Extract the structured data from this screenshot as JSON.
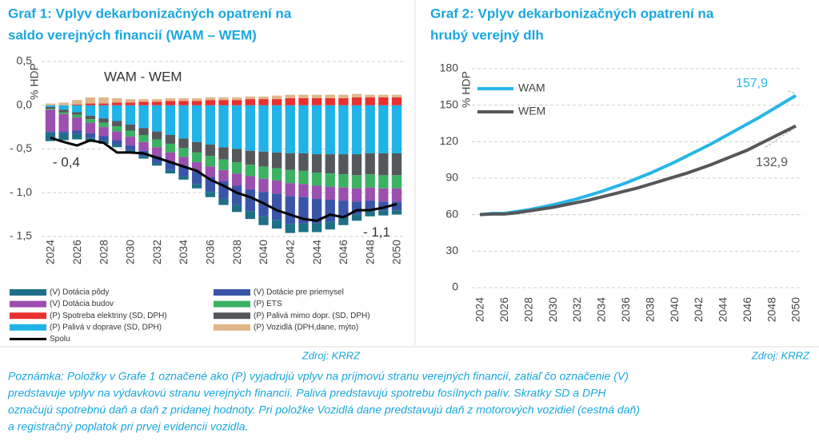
{
  "chart_data": [
    {
      "type": "bar",
      "stacked": true,
      "title": [
        "Graf 1: Vplyv dekarbonizačných opatrení na",
        "saldo verejných financií (WAM – WEM)"
      ],
      "annotation": "WAM - WEM",
      "ylabel": "% HDP",
      "source": "Zdroj: KRRZ",
      "categories": [
        "2024",
        null,
        "2026",
        null,
        "2028",
        null,
        "2030",
        null,
        "2032",
        null,
        "2034",
        null,
        "2036",
        null,
        "2038",
        null,
        "2040",
        null,
        "2042",
        null,
        "2044",
        null,
        "2046",
        null,
        "2048",
        null,
        "2050"
      ],
      "ylim": [
        -1.5,
        0.5
      ],
      "yticks": [
        {
          "value": 0.5,
          "label": "0,5"
        },
        {
          "value": 0,
          "label": "0,0"
        },
        {
          "value": -0.5,
          "label": "- 0,5"
        },
        {
          "value": -1,
          "label": "- 1,0"
        },
        {
          "value": -1.5,
          "label": "- 1,5"
        }
      ],
      "grid": true,
      "series": [
        {
          "name": "(P) Palivá v doprave (SD, DPH)",
          "color": "#1fb3e8",
          "values": [
            -0.02,
            -0.05,
            -0.08,
            -0.12,
            -0.15,
            -0.18,
            -0.22,
            -0.26,
            -0.3,
            -0.34,
            -0.38,
            -0.42,
            -0.45,
            -0.48,
            -0.5,
            -0.52,
            -0.53,
            -0.54,
            -0.55,
            -0.55,
            -0.56,
            -0.56,
            -0.56,
            -0.56,
            -0.55,
            -0.55,
            -0.55
          ]
        },
        {
          "name": "(P) Palivá mimo dopr. (SD, DPH)",
          "color": "#55585b",
          "values": [
            -0.02,
            -0.03,
            -0.03,
            -0.04,
            -0.05,
            -0.06,
            -0.07,
            -0.08,
            -0.09,
            -0.1,
            -0.11,
            -0.12,
            -0.13,
            -0.14,
            -0.15,
            -0.16,
            -0.17,
            -0.18,
            -0.19,
            -0.2,
            -0.21,
            -0.22,
            -0.23,
            -0.24,
            -0.24,
            -0.25,
            -0.25
          ]
        },
        {
          "name": "(P) ETS",
          "color": "#3bb162",
          "values": [
            -0.01,
            -0.02,
            -0.03,
            -0.04,
            -0.05,
            -0.06,
            -0.07,
            -0.08,
            -0.09,
            -0.1,
            -0.1,
            -0.11,
            -0.12,
            -0.12,
            -0.13,
            -0.13,
            -0.14,
            -0.14,
            -0.15,
            -0.15,
            -0.15,
            -0.15,
            -0.15,
            -0.15,
            -0.15,
            -0.15,
            -0.15
          ]
        },
        {
          "name": "(V) Dotácia budov",
          "color": "#9b4fae",
          "values": [
            -0.25,
            -0.2,
            -0.15,
            -0.12,
            -0.1,
            -0.1,
            -0.1,
            -0.1,
            -0.1,
            -0.1,
            -0.1,
            -0.11,
            -0.12,
            -0.13,
            -0.14,
            -0.15,
            -0.15,
            -0.15,
            -0.15,
            -0.15,
            -0.15,
            -0.15,
            -0.15,
            -0.15,
            -0.15,
            -0.15,
            -0.15
          ]
        },
        {
          "name": "(V) Dotácie pre priemysel",
          "color": "#3a55a8",
          "values": [
            -0.01,
            -0.02,
            -0.04,
            -0.05,
            -0.05,
            -0.05,
            -0.05,
            -0.06,
            -0.08,
            -0.1,
            -0.12,
            -0.14,
            -0.17,
            -0.2,
            -0.22,
            -0.25,
            -0.28,
            -0.3,
            -0.32,
            -0.3,
            -0.28,
            -0.25,
            -0.2,
            -0.15,
            -0.12,
            -0.1,
            -0.1
          ]
        },
        {
          "name": "(V) Dotácia pôdy",
          "color": "#1f6f87",
          "values": [
            -0.1,
            -0.08,
            -0.06,
            -0.05,
            -0.04,
            -0.03,
            -0.03,
            -0.03,
            -0.03,
            -0.04,
            -0.04,
            -0.05,
            -0.06,
            -0.07,
            -0.08,
            -0.09,
            -0.1,
            -0.1,
            -0.1,
            -0.1,
            -0.1,
            -0.09,
            -0.08,
            -0.07,
            -0.06,
            -0.06,
            -0.05
          ]
        },
        {
          "name": "(P) Spotreba elektriny (SD, DPH)",
          "color": "#e8302f",
          "values": [
            0,
            0,
            0.01,
            0.02,
            0.02,
            0.03,
            0.03,
            0.04,
            0.04,
            0.05,
            0.05,
            0.05,
            0.06,
            0.06,
            0.06,
            0.07,
            0.07,
            0.07,
            0.08,
            0.08,
            0.08,
            0.08,
            0.08,
            0.09,
            0.09,
            0.09,
            0.09
          ]
        },
        {
          "name": "(P) Vozidlá (DPH,dane, mýto)",
          "color": "#e0b58a",
          "values": [
            0.02,
            0.03,
            0.05,
            0.07,
            0.07,
            0.05,
            0.04,
            0.03,
            0.03,
            0.03,
            0.03,
            0.03,
            0.03,
            0.03,
            0.03,
            0.03,
            0.03,
            0.04,
            0.04,
            0.04,
            0.04,
            0.04,
            0.04,
            0.04,
            0.03,
            0.03,
            0.03
          ]
        },
        {
          "name": "Spolu",
          "type": "line",
          "color": "#000000",
          "values": [
            -0.37,
            -0.42,
            -0.46,
            -0.4,
            -0.43,
            -0.54,
            -0.54,
            -0.55,
            -0.6,
            -0.65,
            -0.7,
            -0.75,
            -0.85,
            -0.92,
            -1.0,
            -1.05,
            -1.12,
            -1.2,
            -1.25,
            -1.3,
            -1.32,
            -1.25,
            -1.28,
            -1.2,
            -1.2,
            -1.17,
            -1.13
          ],
          "value_labels": [
            "- 0,4",
            null,
            null,
            null,
            null,
            null,
            null,
            null,
            null,
            null,
            null,
            null,
            null,
            null,
            null,
            null,
            null,
            null,
            null,
            null,
            null,
            null,
            null,
            null,
            null,
            null,
            "- 1,1"
          ]
        }
      ]
    },
    {
      "type": "line",
      "title": [
        "Graf 2: Vplyv dekarbonizačných opatrení na",
        "hrubý verejný dlh"
      ],
      "ylabel": "% HDP",
      "source": "Zdroj: KRRZ",
      "x": [
        2024,
        2025,
        2026,
        2027,
        2028,
        2029,
        2030,
        2031,
        2032,
        2033,
        2034,
        2035,
        2036,
        2037,
        2038,
        2039,
        2040,
        2041,
        2042,
        2043,
        2044,
        2045,
        2046,
        2047,
        2048,
        2049,
        2050
      ],
      "xlim": [
        2024,
        2050
      ],
      "xticks": [
        2024,
        2026,
        2028,
        2030,
        2032,
        2034,
        2036,
        2038,
        2040,
        2042,
        2044,
        2046,
        2048,
        2050
      ],
      "ylim": [
        0,
        180
      ],
      "yticks": [
        0,
        30,
        60,
        90,
        120,
        150,
        180
      ],
      "grid": true,
      "series": [
        {
          "name": "WAM",
          "color": "#29b5e8",
          "values": [
            60,
            61,
            61,
            62.5,
            64,
            66,
            68,
            70.5,
            73,
            76,
            79,
            82.5,
            86,
            90,
            94,
            98.5,
            103,
            108,
            113,
            118,
            123.5,
            129,
            134.5,
            140,
            146,
            152,
            157.9
          ],
          "value_labels": [
            null,
            null,
            null,
            null,
            null,
            null,
            null,
            null,
            null,
            null,
            null,
            null,
            null,
            null,
            null,
            null,
            null,
            null,
            null,
            null,
            null,
            null,
            null,
            null,
            null,
            null,
            "157,9"
          ]
        },
        {
          "name": "WEM",
          "color": "#555759",
          "values": [
            60,
            60.5,
            60.5,
            61.5,
            63,
            64.5,
            66,
            68,
            70,
            72,
            74.5,
            77,
            79.5,
            82,
            85,
            88,
            91,
            94,
            97.5,
            101,
            105,
            109,
            113,
            118,
            123,
            128,
            132.9
          ],
          "value_labels": [
            null,
            null,
            null,
            null,
            null,
            null,
            null,
            null,
            null,
            null,
            null,
            null,
            null,
            null,
            null,
            null,
            null,
            null,
            null,
            null,
            null,
            null,
            null,
            null,
            null,
            null,
            "132,9"
          ]
        }
      ]
    }
  ],
  "note": [
    "Poznámka: Položky v Grafe 1 označené ako (P) vyjadrujú vplyv na príjmovú stranu verejných financií, zatiaľ čo označenie (V)",
    "predstavuje vplyv na výdavkovú stranu verejných financií. Palivá predstavujú spotrebu fosílnych palív. Skratky SD a DPH",
    "označujú spotrebnú daň a daň z pridanej hodnoty. Pri položke Vozidlá dane predstavujú daň z motorových vozidiel (cestná daň)",
    "a registračný poplatok pri prvej evidencii vozidla."
  ]
}
